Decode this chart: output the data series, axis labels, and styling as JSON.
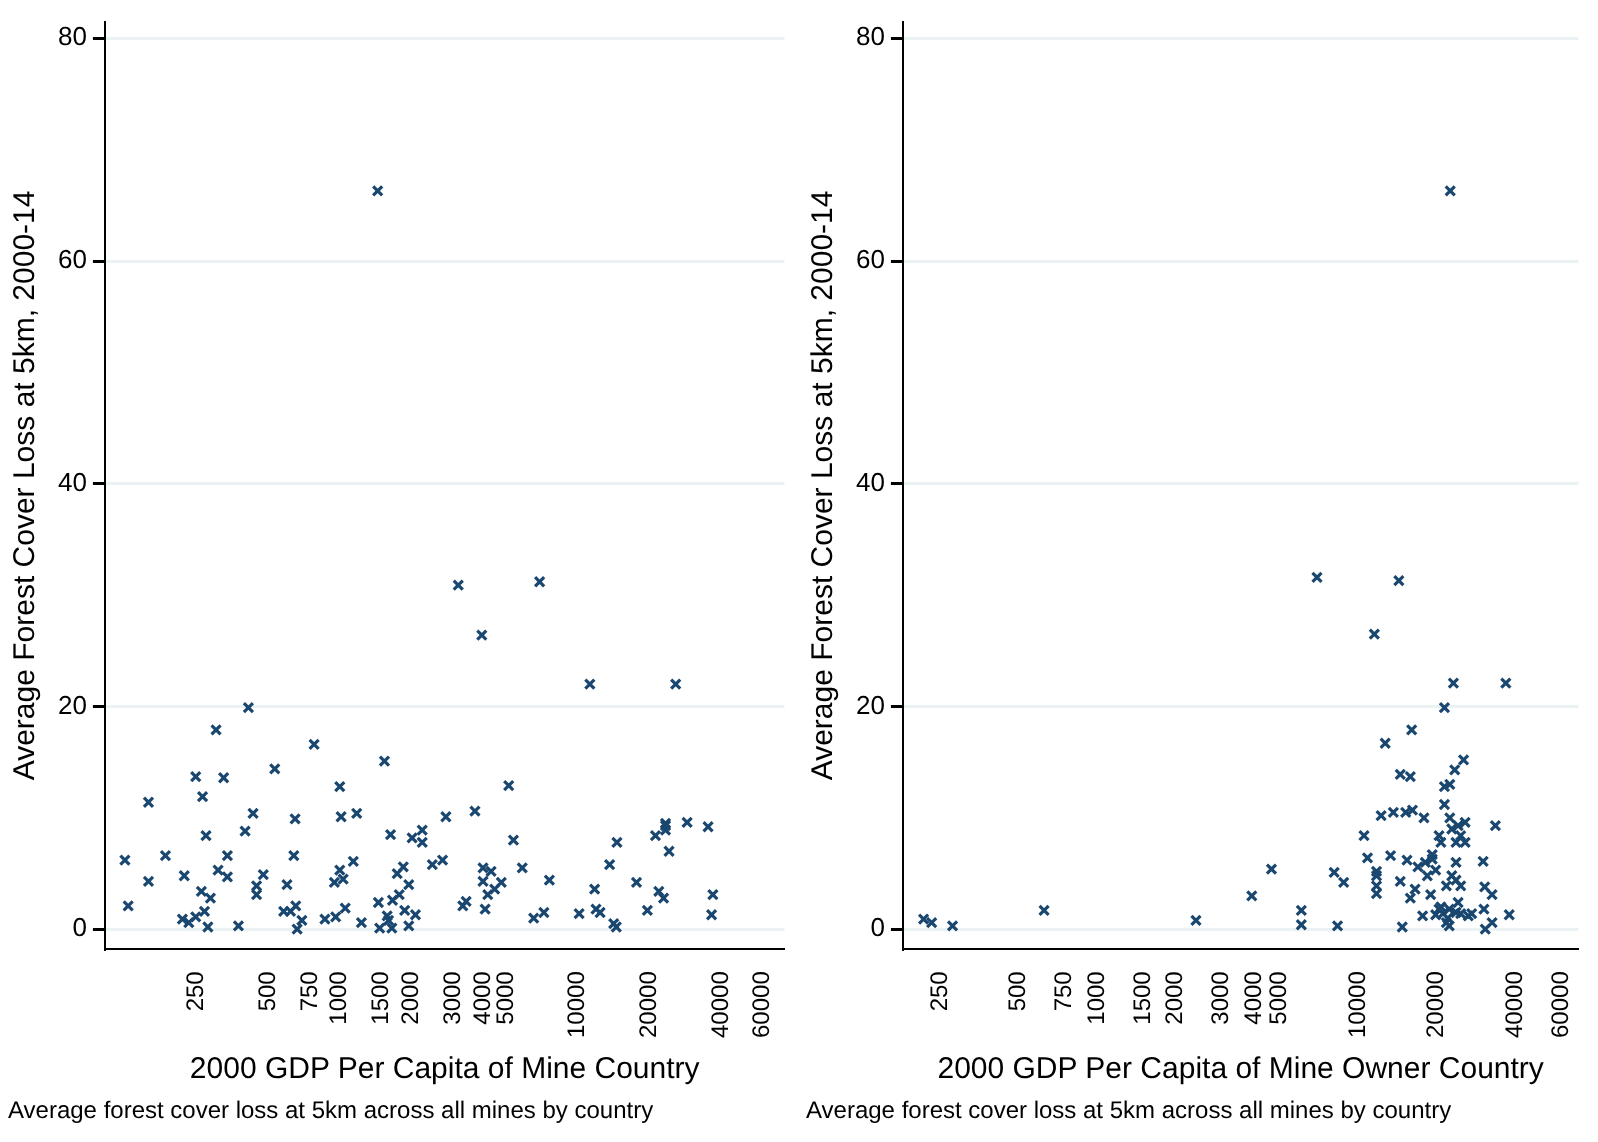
{
  "chart_data": [
    {
      "type": "scatter",
      "xlabel": "2000 GDP Per Capita of Mine Country",
      "ylabel": "Average Forest Cover Loss at 5km, 2000-14",
      "annotations": [
        "Average forest cover loss at 5km across all mines by country"
      ],
      "log": "x",
      "grid": "y",
      "legend": false,
      "marker": "cross",
      "xlim": [
        103,
        74000
      ],
      "ylim": [
        -1.8,
        81.5
      ],
      "xticks": [
        250,
        500,
        750,
        1000,
        1500,
        2000,
        3000,
        4000,
        5000,
        10000,
        20000,
        40000,
        60000
      ],
      "yticks": [
        0,
        20,
        40,
        60,
        80
      ],
      "series": [
        {
          "color": "#1a476f",
          "x": [
            125,
            129,
            157,
            157,
            185,
            222,
            218,
            232,
            248,
            248,
            265,
            262,
            274,
            270,
            279,
            286,
            302,
            308,
            325,
            337,
            337,
            375,
            400,
            413,
            432,
            447,
            447,
            477,
            533,
            600,
            581,
            621,
            641,
            649,
            653,
            662,
            693,
            780,
            866,
            961,
            949,
            1000,
            1000,
            1013,
            1033,
            1054,
            1140,
            1178,
            1233,
            1453,
            1471,
            1541,
            1582,
            1603,
            1635,
            1655,
            1666,
            1743,
            1778,
            1849,
            1874,
            1950,
            1950,
            2014,
            2080,
            2221,
            2221,
            2449,
            2704,
            2793,
            3289,
            3397,
            3700,
            4000,
            3953,
            4000,
            4083,
            4188,
            4325,
            4477,
            4775,
            5129,
            5370,
            5848,
            6531,
            7211,
            7603,
            10140,
            11250,
            11780,
            11940,
            12420,
            13620,
            14170,
            14530,
            14620,
            17670,
            19630,
            21230,
            21930,
            22960,
            23400,
            23400,
            23400,
            24210,
            25820,
            28840,
            35320,
            36540,
            37000,
            1443,
            3148,
            6918
          ],
          "values": [
            6.2,
            2.1,
            11.4,
            4.3,
            6.6,
            4.8,
            0.9,
            0.6,
            1.1,
            13.7,
            11.9,
            3.4,
            8.4,
            1.6,
            0.2,
            2.8,
            17.9,
            5.3,
            13.6,
            6.6,
            4.7,
            0.3,
            8.8,
            19.9,
            10.4,
            3.9,
            3.1,
            4.9,
            14.4,
            4.0,
            1.6,
            1.6,
            6.6,
            9.9,
            2.1,
            0,
            0.8,
            16.6,
            0.9,
            1.1,
            4.2,
            12.8,
            5.3,
            10.1,
            4.5,
            1.9,
            6.1,
            10.4,
            0.6,
            2.4,
            0.1,
            15.1,
            1.2,
            0.8,
            8.5,
            0.1,
            2.6,
            5.0,
            3.1,
            5.6,
            1.7,
            4.0,
            0.3,
            8.2,
            1.3,
            8.9,
            7.8,
            5.8,
            6.2,
            10.1,
            2.1,
            2.5,
            10.6,
            5.5,
            26.4,
            4.3,
            1.8,
            3.1,
            5.2,
            3.6,
            4.2,
            12.9,
            8.0,
            5.5,
            1.0,
            1.5,
            4.4,
            1.4,
            22.0,
            3.6,
            1.8,
            1.5,
            5.8,
            0.5,
            0.2,
            7.8,
            4.2,
            1.7,
            8.4,
            3.4,
            2.8,
            8.9,
            9.5,
            9.3,
            7.0,
            22.0,
            9.6,
            9.2,
            1.3,
            3.1,
            66.3,
            30.9,
            31.2
          ]
        }
      ]
    },
    {
      "type": "scatter",
      "xlabel": "2000 GDP Per Capita of Mine Owner Country",
      "ylabel": "Average Forest Cover Loss at 5km, 2000-14",
      "annotations": [
        "Average forest cover loss at 5km across all mines by country"
      ],
      "log": "x",
      "grid": "y",
      "legend": false,
      "marker": "cross",
      "xlim": [
        180,
        70000
      ],
      "ylim": [
        -1.8,
        81.5
      ],
      "xticks": [
        250,
        500,
        750,
        1000,
        1500,
        2000,
        3000,
        4000,
        5000,
        10000,
        20000,
        40000,
        60000
      ],
      "yticks": [
        0,
        20,
        40,
        60,
        80
      ],
      "series": [
        {
          "color": "#1a476f",
          "x": [
            216,
            232,
            279,
            626,
            2393,
            3917,
            4660,
            6067,
            6067,
            6966,
            8106,
            8350,
            8817,
            10550,
            10880,
            11560,
            11780,
            11780,
            11780,
            11780,
            12270,
            12720,
            13340,
            13670,
            14350,
            14530,
            14530,
            14790,
            15240,
            15420,
            15880,
            15880,
            16070,
            16180,
            16560,
            16980,
            17700,
            17910,
            18120,
            18450,
            19000,
            19270,
            19270,
            19860,
            19860,
            20460,
            20460,
            20800,
            20800,
            21460,
            21460,
            21460,
            21830,
            21830,
            22390,
            22390,
            22500,
            22500,
            22900,
            22900,
            23230,
            23500,
            23770,
            23770,
            23770,
            23770,
            24210,
            24210,
            24770,
            24770,
            24770,
            25410,
            25760,
            25760,
            26490,
            27290,
            30200,
            30410,
            30620,
            30770,
            32680,
            32680,
            33650,
            36900,
            38020,
            22590,
            21180,
            22100
          ],
          "values": [
            0.9,
            0.6,
            0.3,
            1.7,
            0.8,
            3.0,
            5.4,
            1.7,
            0.4,
            31.6,
            5.1,
            0.3,
            4.2,
            8.4,
            6.4,
            26.5,
            4.8,
            3.9,
            3.2,
            5.2,
            10.2,
            16.7,
            6.6,
            10.5,
            31.3,
            13.9,
            4.3,
            0.2,
            10.5,
            6.2,
            13.7,
            2.8,
            17.9,
            10.7,
            3.6,
            5.6,
            1.2,
            10.0,
            6.0,
            4.8,
            3.1,
            6.7,
            6.3,
            1.3,
            5.3,
            1.8,
            8.4,
            7.8,
            2.0,
            19.9,
            11.2,
            12.8,
            0.6,
            3.9,
            0.3,
            1.8,
            13,
            10,
            9.0,
            4.8,
            22.1,
            14.3,
            1.5,
            4.4,
            6.0,
            7.8,
            9.3,
            2.4,
            8.4,
            1.4,
            3.9,
            15.2,
            9.6,
            7.8,
            1.2,
            1.4,
            6.1,
            1.8,
            3.8,
            0.0,
            3.1,
            0.6,
            9.3,
            22.1,
            1.3,
            66.3,
            1.4,
            1.0
          ]
        }
      ]
    }
  ]
}
